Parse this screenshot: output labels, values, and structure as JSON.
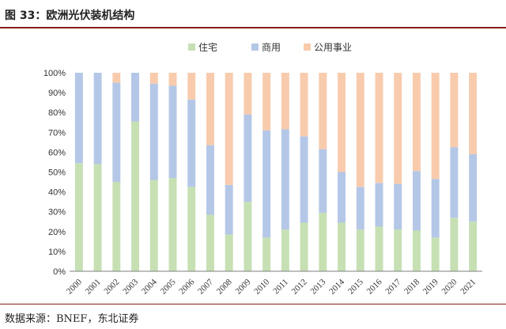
{
  "figure": {
    "title": "图 33：欧洲光伏装机结构",
    "source": "数据来源：BNEF，东北证券"
  },
  "colors": {
    "residential": "#c6e0b4",
    "commercial": "#b4c7e7",
    "utility": "#f8cbad",
    "accent_rule": "#8a1c1c"
  },
  "chart_data": {
    "type": "bar",
    "stacked": true,
    "title": "",
    "xlabel": "",
    "ylabel": "",
    "ylim": [
      0,
      100
    ],
    "y_ticks": [
      "0%",
      "10%",
      "20%",
      "30%",
      "40%",
      "50%",
      "60%",
      "70%",
      "80%",
      "90%",
      "100%"
    ],
    "legend_position": "top",
    "grid": false,
    "categories": [
      "2000",
      "2001",
      "2002",
      "2003",
      "2004",
      "2005",
      "2006",
      "2007",
      "2008",
      "2009",
      "2010",
      "2011",
      "2012",
      "2013",
      "2014",
      "2015",
      "2016",
      "2017",
      "2018",
      "2019",
      "2020",
      "2021"
    ],
    "series": [
      {
        "name": "住宅",
        "color": "#c6e0b4",
        "values": [
          54.5,
          54,
          45,
          75.5,
          46,
          47,
          42.5,
          28.5,
          18.5,
          35,
          17,
          21,
          24.5,
          29.5,
          24.5,
          21,
          22.5,
          21,
          20.5,
          17,
          27,
          25
        ]
      },
      {
        "name": "商用",
        "color": "#b4c7e7",
        "values": [
          45.5,
          46,
          50,
          24.5,
          48.5,
          46.5,
          44,
          35,
          25,
          44,
          54,
          50.5,
          43.5,
          32,
          25.5,
          21.5,
          22,
          23,
          30,
          29.5,
          35.5,
          34
        ]
      },
      {
        "name": "公用事业",
        "color": "#f8cbad",
        "values": [
          0,
          0,
          5,
          0,
          5.5,
          6.5,
          13.5,
          36.5,
          56.5,
          21,
          29,
          28.5,
          32,
          38.5,
          50,
          57.5,
          55.5,
          56,
          49.5,
          53.5,
          37.5,
          41
        ]
      }
    ]
  }
}
